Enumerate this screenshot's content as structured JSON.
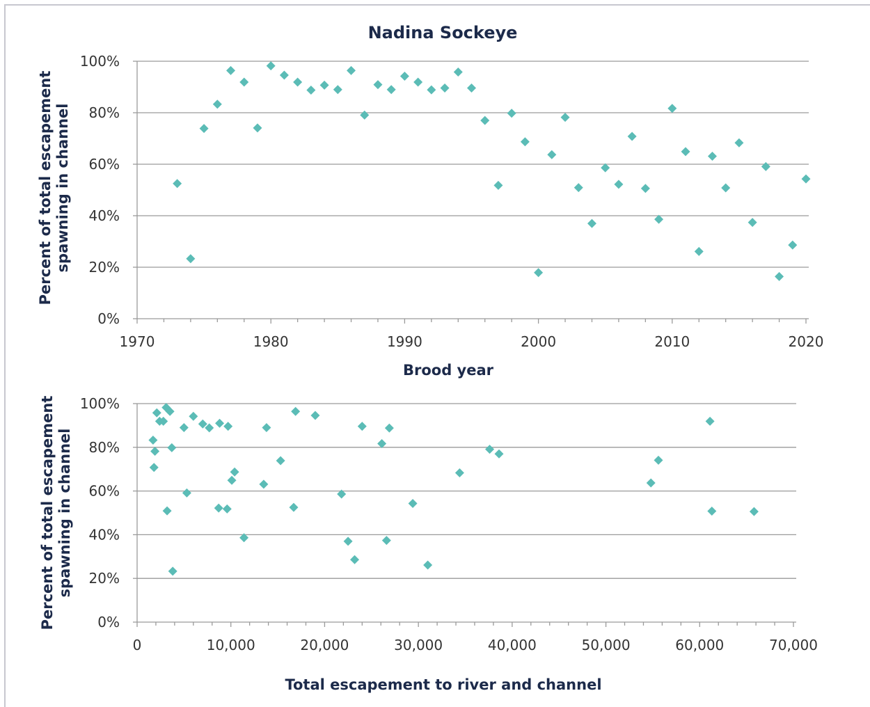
{
  "chart_data": [
    {
      "type": "scatter",
      "title": "Nadina Sockeye",
      "xlabel": "Brood year",
      "ylabel": "Percent of total escapement spawning in channel",
      "xlim": [
        1970,
        2020
      ],
      "ylim": [
        0,
        100
      ],
      "x_ticks": [
        "1970",
        "1980",
        "1990",
        "2000",
        "2010",
        "2020"
      ],
      "y_ticks": [
        "0%",
        "20%",
        "40%",
        "60%",
        "80%",
        "100%"
      ],
      "grid": true,
      "marker": "diamond",
      "color": "#5bbcb6",
      "series": [
        {
          "points": [
            [
              1973,
              52.5
            ],
            [
              1974,
              23.3
            ],
            [
              1975,
              73.9
            ],
            [
              1976,
              83.3
            ],
            [
              1977,
              96.4
            ],
            [
              1978,
              91.9
            ],
            [
              1979,
              74.1
            ],
            [
              1980,
              98.2
            ],
            [
              1981,
              94.6
            ],
            [
              1982,
              91.9
            ],
            [
              1983,
              88.8
            ],
            [
              1984,
              90.7
            ],
            [
              1985,
              89.0
            ],
            [
              1986,
              96.4
            ],
            [
              1987,
              79.1
            ],
            [
              1988,
              90.9
            ],
            [
              1989,
              89.0
            ],
            [
              1990,
              94.2
            ],
            [
              1991,
              91.9
            ],
            [
              1992,
              88.9
            ],
            [
              1993,
              89.6
            ],
            [
              1994,
              95.8
            ],
            [
              1995,
              89.6
            ],
            [
              1996,
              77.0
            ],
            [
              1997,
              51.8
            ],
            [
              1998,
              79.8
            ],
            [
              1999,
              68.7
            ],
            [
              2000,
              17.9
            ],
            [
              2001,
              63.7
            ],
            [
              2002,
              78.2
            ],
            [
              2003,
              50.9
            ],
            [
              2004,
              37.0
            ],
            [
              2005,
              58.6
            ],
            [
              2006,
              52.2
            ],
            [
              2007,
              70.8
            ],
            [
              2008,
              50.6
            ],
            [
              2009,
              38.6
            ],
            [
              2010,
              81.7
            ],
            [
              2011,
              64.9
            ],
            [
              2012,
              26.1
            ],
            [
              2013,
              63.1
            ],
            [
              2014,
              50.8
            ],
            [
              2015,
              68.3
            ],
            [
              2016,
              37.4
            ],
            [
              2017,
              59.1
            ],
            [
              2018,
              16.4
            ],
            [
              2019,
              28.6
            ],
            [
              2020,
              54.3
            ]
          ]
        }
      ]
    },
    {
      "type": "scatter",
      "title": "",
      "xlabel": "Total escapement to river and channel",
      "ylabel": "Percent of total escapement spawning in channel",
      "xlim": [
        0,
        70000
      ],
      "ylim": [
        0,
        100
      ],
      "x_ticks": [
        "0",
        "10,000",
        "20,000",
        "30,000",
        "40,000",
        "50,000",
        "60,000",
        "70,000"
      ],
      "y_ticks": [
        "0%",
        "20%",
        "40%",
        "60%",
        "80%",
        "100%"
      ],
      "grid": true,
      "marker": "diamond",
      "color": "#5bbcb6",
      "series": [
        {
          "points": [
            [
              1700,
              83.3
            ],
            [
              1800,
              70.8
            ],
            [
              1900,
              78.2
            ],
            [
              2100,
              95.8
            ],
            [
              2400,
              91.9
            ],
            [
              2800,
              91.9
            ],
            [
              3100,
              98.2
            ],
            [
              3200,
              50.9
            ],
            [
              3500,
              96.4
            ],
            [
              3700,
              79.8
            ],
            [
              3800,
              23.3
            ],
            [
              5000,
              89.0
            ],
            [
              5300,
              59.1
            ],
            [
              6000,
              94.2
            ],
            [
              7000,
              90.7
            ],
            [
              7700,
              88.9
            ],
            [
              8700,
              52.2
            ],
            [
              8800,
              91.0
            ],
            [
              9600,
              51.8
            ],
            [
              9700,
              89.6
            ],
            [
              10100,
              64.9
            ],
            [
              10400,
              68.7
            ],
            [
              11400,
              38.6
            ],
            [
              13500,
              63.1
            ],
            [
              13800,
              89.0
            ],
            [
              15300,
              73.9
            ],
            [
              16700,
              52.5
            ],
            [
              16900,
              96.4
            ],
            [
              19000,
              94.6
            ],
            [
              21800,
              58.6
            ],
            [
              22500,
              37.0
            ],
            [
              23200,
              28.6
            ],
            [
              24000,
              89.6
            ],
            [
              26100,
              81.7
            ],
            [
              26600,
              37.4
            ],
            [
              26900,
              88.8
            ],
            [
              29400,
              54.3
            ],
            [
              31000,
              26.1
            ],
            [
              34400,
              68.3
            ],
            [
              37600,
              79.1
            ],
            [
              38600,
              77.0
            ],
            [
              54800,
              63.7
            ],
            [
              55600,
              74.1
            ],
            [
              61100,
              91.9
            ],
            [
              61300,
              50.8
            ],
            [
              65800,
              50.6
            ]
          ]
        }
      ]
    }
  ]
}
